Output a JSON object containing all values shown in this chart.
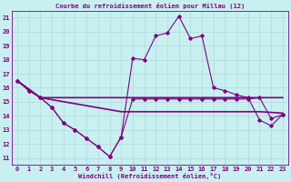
{
  "title": "Courbe du refroidissement éolien pour Millau (12)",
  "xlabel": "Windchill (Refroidissement éolien,°C)",
  "xlim": [
    -0.5,
    23.5
  ],
  "ylim": [
    10.5,
    21.5
  ],
  "yticks": [
    11,
    12,
    13,
    14,
    15,
    16,
    17,
    18,
    19,
    20,
    21
  ],
  "xticks": [
    0,
    1,
    2,
    3,
    4,
    5,
    6,
    7,
    8,
    9,
    10,
    11,
    12,
    13,
    14,
    15,
    16,
    17,
    18,
    19,
    20,
    21,
    22,
    23
  ],
  "bg_color": "#c8f0f0",
  "line_color": "#800080",
  "grid_color": "#b0d8d8",
  "line_windchill": {
    "x": [
      0,
      1,
      2,
      3,
      4,
      5,
      6,
      7,
      8,
      9,
      10,
      11,
      12,
      13,
      14,
      15,
      16,
      17,
      18,
      19,
      20,
      21,
      22,
      23
    ],
    "y": [
      16.5,
      15.8,
      15.3,
      14.6,
      13.5,
      13.0,
      12.4,
      11.8,
      11.1,
      12.5,
      18.1,
      18.0,
      19.7,
      19.9,
      21.1,
      19.5,
      19.7,
      16.0,
      15.8,
      15.5,
      15.3,
      13.7,
      13.3,
      14.1
    ]
  },
  "line_flat1": {
    "x": [
      0,
      2,
      9,
      10,
      21,
      23
    ],
    "y": [
      16.5,
      15.3,
      15.3,
      15.3,
      15.3,
      15.3
    ]
  },
  "line_flat2": {
    "x": [
      0,
      2,
      9,
      10,
      21,
      23
    ],
    "y": [
      16.5,
      15.3,
      14.3,
      14.3,
      14.3,
      14.2
    ]
  },
  "line_bottom": {
    "x": [
      0,
      1,
      2,
      3,
      4,
      5,
      6,
      7,
      8,
      9,
      10,
      11,
      12,
      13,
      14,
      15,
      16,
      17,
      18,
      19,
      20,
      21,
      22,
      23
    ],
    "y": [
      16.5,
      15.8,
      15.3,
      14.6,
      13.5,
      13.0,
      12.4,
      11.8,
      11.1,
      12.5,
      15.2,
      15.2,
      15.2,
      15.2,
      15.2,
      15.2,
      15.2,
      15.2,
      15.2,
      15.2,
      15.2,
      15.3,
      13.8,
      14.1
    ]
  }
}
